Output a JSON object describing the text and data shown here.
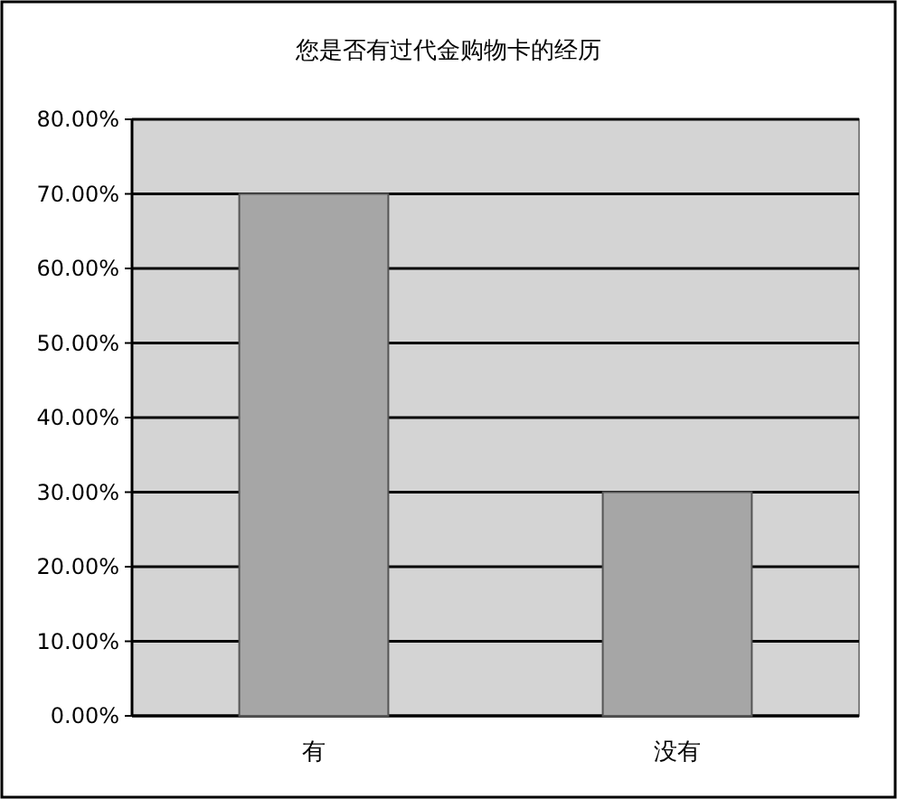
{
  "chart_data": {
    "type": "bar",
    "title": "您是否有过代金购物卡的经历",
    "categories": [
      "有",
      "没有"
    ],
    "values": [
      70,
      30
    ],
    "color": "#a6a6a6",
    "ylim": [
      0,
      80
    ],
    "yticks": [
      {
        "value": 0,
        "label": "0.00%"
      },
      {
        "value": 10,
        "label": "10.00%"
      },
      {
        "value": 20,
        "label": "20.00%"
      },
      {
        "value": 30,
        "label": "30.00%"
      },
      {
        "value": 40,
        "label": "40.00%"
      },
      {
        "value": 50,
        "label": "50.00%"
      },
      {
        "value": 60,
        "label": "60.00%"
      },
      {
        "value": 70,
        "label": "70.00%"
      },
      {
        "value": 80,
        "label": "80.00%"
      }
    ],
    "grid": "y"
  }
}
